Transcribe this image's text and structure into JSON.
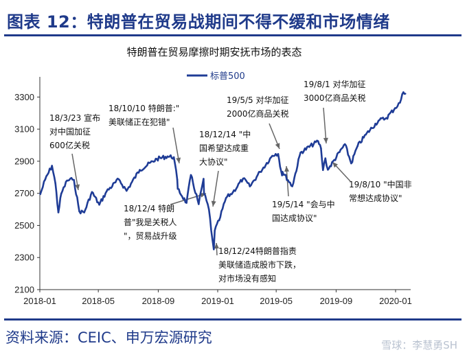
{
  "figure_title": "图表 12：特朗普在贸易战期间不得不缓和市场情绪",
  "source": "资料来源：CEIC、申万宏源研究",
  "watermark": "雪球：李慧勇SH",
  "colors": {
    "brand": "#1f3a8a",
    "series": "#1f3c96",
    "axis": "#333333"
  },
  "chart_data": {
    "type": "line",
    "title": "特朗普在贸易摩擦时期安抚市场的表态",
    "xlabel": "",
    "ylabel": "",
    "legend": "top-center",
    "grid": false,
    "x_range": [
      "2018-01-01",
      "2020-02-01"
    ],
    "ylim": [
      2100,
      3400
    ],
    "x_ticks": [
      {
        "date": "2018-01-01",
        "label": "2018-01"
      },
      {
        "date": "2018-05-01",
        "label": "2018-05"
      },
      {
        "date": "2018-09-01",
        "label": "2018-09"
      },
      {
        "date": "2019-01-01",
        "label": "2019-01"
      },
      {
        "date": "2019-05-01",
        "label": "2019-05"
      },
      {
        "date": "2019-09-01",
        "label": "2019-09"
      },
      {
        "date": "2020-01-01",
        "label": "2020-01"
      }
    ],
    "y_ticks": [
      2100,
      2300,
      2500,
      2700,
      2900,
      3100,
      3300
    ],
    "series": [
      {
        "name": "标普500",
        "x": [
          "2018-01-02",
          "2018-01-12",
          "2018-01-26",
          "2018-02-02",
          "2018-02-08",
          "2018-02-14",
          "2018-02-26",
          "2018-03-09",
          "2018-03-12",
          "2018-03-23",
          "2018-04-02",
          "2018-04-18",
          "2018-05-03",
          "2018-05-18",
          "2018-06-12",
          "2018-06-28",
          "2018-07-25",
          "2018-08-29",
          "2018-09-20",
          "2018-10-03",
          "2018-10-10",
          "2018-10-11",
          "2018-10-29",
          "2018-11-07",
          "2018-11-23",
          "2018-12-03",
          "2018-12-04",
          "2018-12-14",
          "2018-12-21",
          "2018-12-24",
          "2018-12-26",
          "2019-01-04",
          "2019-01-18",
          "2019-02-01",
          "2019-02-22",
          "2019-03-08",
          "2019-03-29",
          "2019-04-23",
          "2019-04-30",
          "2019-05-05",
          "2019-05-13",
          "2019-05-14",
          "2019-06-03",
          "2019-06-20",
          "2019-07-26",
          "2019-08-01",
          "2019-08-05",
          "2019-08-10",
          "2019-08-15",
          "2019-09-19",
          "2019-10-02",
          "2019-10-15",
          "2019-11-01",
          "2019-11-27",
          "2019-12-13",
          "2019-12-31",
          "2020-01-10",
          "2020-01-17",
          "2020-01-21"
        ],
        "values": [
          2695,
          2786,
          2872,
          2762,
          2581,
          2698,
          2780,
          2786,
          2783,
          2588,
          2581,
          2708,
          2629,
          2712,
          2787,
          2716,
          2846,
          2914,
          2930,
          2925,
          2785,
          2728,
          2641,
          2814,
          2633,
          2790,
          2700,
          2600,
          2416,
          2351,
          2468,
          2532,
          2671,
          2706,
          2792,
          2743,
          2834,
          2934,
          2945,
          2945,
          2812,
          2834,
          2744,
          2954,
          3025,
          2980,
          2845,
          2918,
          2847,
          3006,
          2887,
          2995,
          3066,
          3153,
          3169,
          3231,
          3265,
          3330,
          3321
        ]
      }
    ],
    "annotations": [
      {
        "date": "2018-03-23",
        "lines": [
          "18/3/23 宣布",
          "对中国加征",
          "600亿关税"
        ]
      },
      {
        "date": "2018-10-10",
        "lines": [
          "18/10/10 特朗普:\"",
          "美联储正在犯错\""
        ]
      },
      {
        "date": "2018-12-04",
        "lines": [
          "18/12/4 特朗",
          "普\"我是关税人",
          "\"，贸易战升级"
        ]
      },
      {
        "date": "2018-12-14",
        "lines": [
          "18/12/14 \"中",
          "国希望达成重",
          "大协议\""
        ]
      },
      {
        "date": "2018-12-24",
        "lines": [
          "18/12/24特朗普指责",
          "美联储造成股市下跌，",
          "对市场没有感知"
        ]
      },
      {
        "date": "2019-05-05",
        "lines": [
          "19/5/5 对华加征",
          "2000亿商品关税"
        ]
      },
      {
        "date": "2019-05-14",
        "lines": [
          "19/5/14 \"会与中",
          "国达成协议\""
        ]
      },
      {
        "date": "2019-08-01",
        "lines": [
          "19/8/1 对华加征",
          "3000亿商品关税"
        ]
      },
      {
        "date": "2019-08-10",
        "lines": [
          "19/8/10 \"中国非",
          "常想达成协议\""
        ]
      }
    ]
  }
}
